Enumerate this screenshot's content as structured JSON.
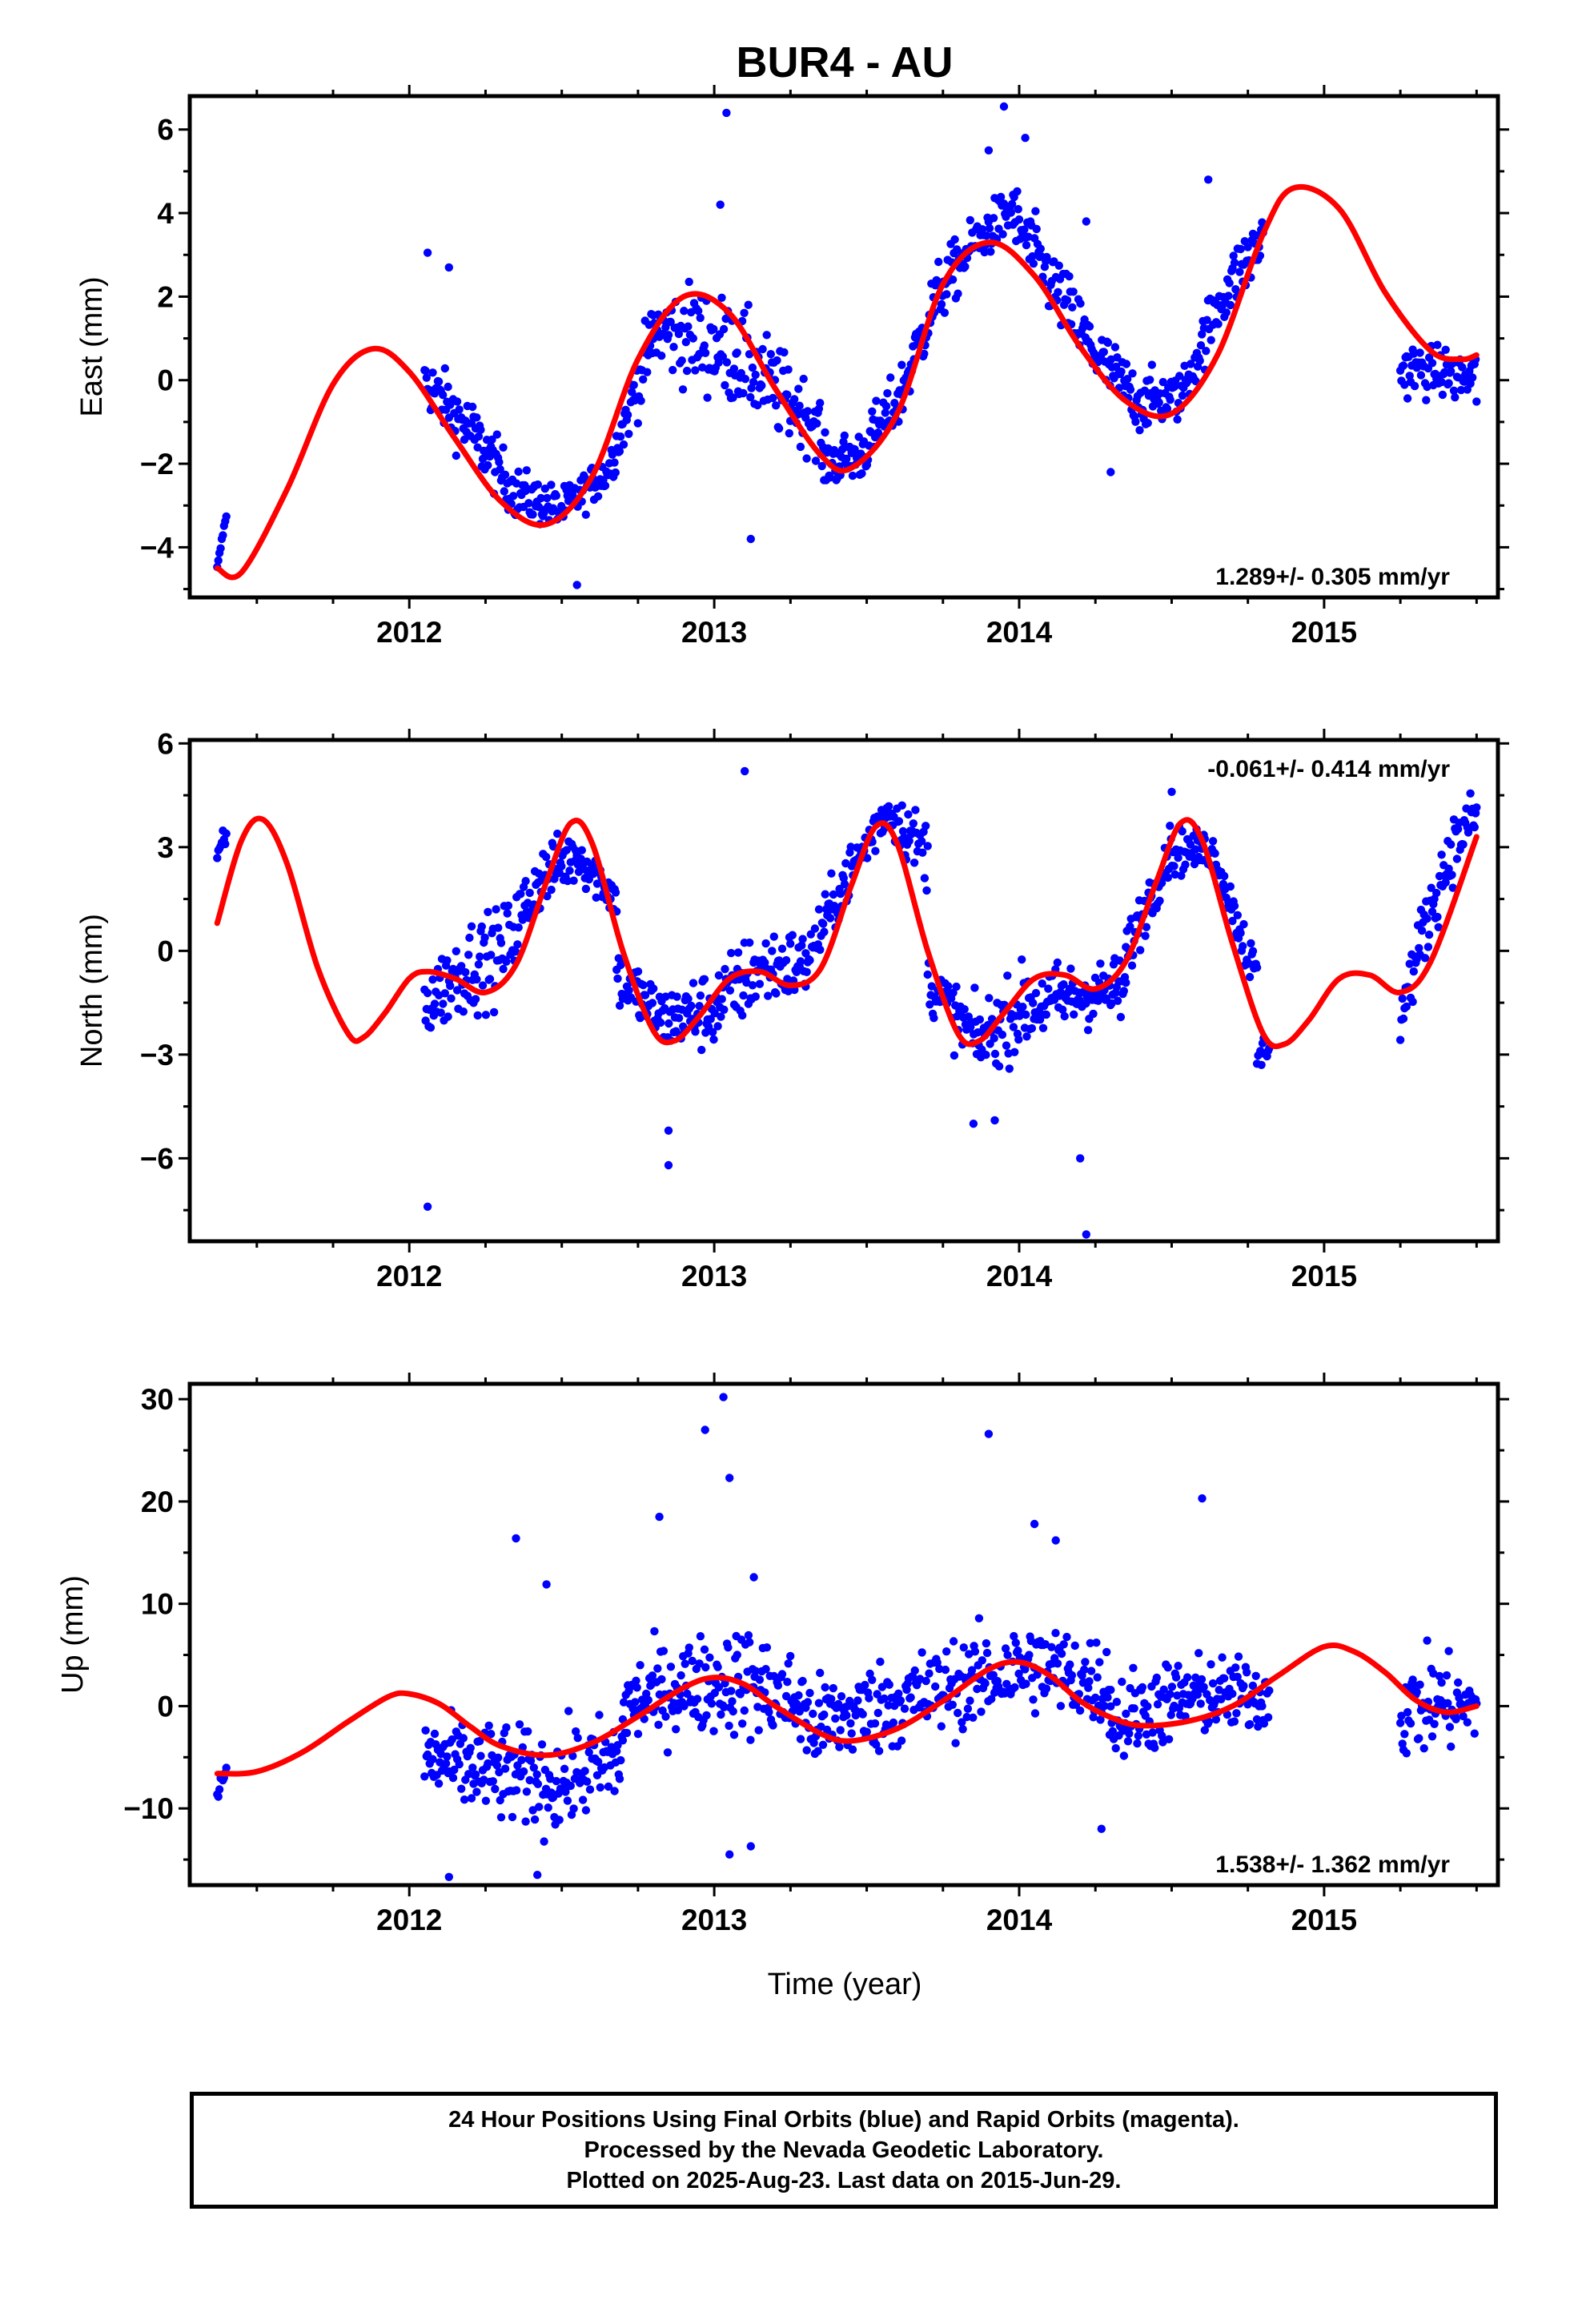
{
  "title": "BUR4 - AU",
  "xlabel": "Time (year)",
  "footer": {
    "line1": "24 Hour Positions Using Final Orbits (blue) and Rapid Orbits (magenta).",
    "line2": "Processed by the Nevada Geodetic Laboratory.",
    "line3": "Plotted on 2025-Aug-23. Last data on 2015-Jun-29."
  },
  "colors": {
    "points": "#0000ff",
    "fit": "#ff0000",
    "axes": "#000000"
  },
  "chart_data": [
    {
      "type": "scatter",
      "ylabel": "East (mm)",
      "rate_label": "1.289+/- 0.305 mm/yr",
      "rate_position": "bottom-right",
      "xlim": [
        2011.28,
        2015.57
      ],
      "ylim": [
        -5.2,
        6.8
      ],
      "xticks": [
        2012,
        2013,
        2014,
        2015
      ],
      "yticks": [
        -4,
        -2,
        0,
        2,
        4,
        6
      ],
      "ytick_labels": [
        "−4",
        "−2",
        "0",
        "2",
        "4",
        "6"
      ],
      "fit": {
        "x": [
          2011.37,
          2011.45,
          2011.6,
          2011.75,
          2011.88,
          2012.0,
          2012.15,
          2012.3,
          2012.45,
          2012.6,
          2012.75,
          2012.9,
          2013.05,
          2013.2,
          2013.35,
          2013.45,
          2013.6,
          2013.75,
          2013.9,
          2014.05,
          2014.2,
          2014.35,
          2014.5,
          2014.65,
          2014.8,
          2014.9,
          2015.05,
          2015.2,
          2015.35,
          2015.45,
          2015.5
        ],
        "y": [
          -4.5,
          -4.6,
          -2.6,
          -0.1,
          0.75,
          0.2,
          -1.4,
          -2.9,
          -3.45,
          -2.3,
          0.5,
          2.0,
          1.6,
          -0.2,
          -1.8,
          -2.1,
          -0.8,
          2.3,
          3.3,
          2.5,
          0.8,
          -0.5,
          -0.8,
          0.6,
          3.5,
          4.6,
          4.1,
          2.1,
          0.7,
          0.5,
          0.6
        ]
      },
      "segments": [
        {
          "start": 2011.37,
          "end": 2011.4,
          "lo": [
            -4.6,
            -3.4
          ],
          "hi": [
            -4.4,
            -3.0
          ]
        },
        {
          "start": 2012.05,
          "end": 2012.8,
          "lo": [
            -1.2,
            -2.6,
            -3.8,
            -4.0,
            -3.0,
            -0.6
          ],
          "hi": [
            1.2,
            0.2,
            -1.6,
            -2.2,
            -1.4,
            2.6
          ]
        },
        {
          "start": 2012.8,
          "end": 2013.35,
          "lo": [
            -0.4,
            -1.2,
            -1.6,
            -2.2,
            -2.4
          ],
          "hi": [
            2.8,
            3.3,
            2.8,
            1.6,
            0.2
          ]
        },
        {
          "start": 2013.35,
          "end": 2013.98,
          "lo": [
            -3.0,
            -3.0,
            -1.8,
            0.6,
            2.2,
            3.0
          ],
          "hi": [
            -1.0,
            -0.6,
            0.8,
            3.4,
            4.4,
            5.2
          ]
        },
        {
          "start": 2013.98,
          "end": 2014.8,
          "lo": [
            2.4,
            0.6,
            -0.8,
            -1.8,
            -1.4,
            0.6,
            2.0
          ],
          "hi": [
            5.4,
            3.8,
            2.0,
            0.8,
            0.6,
            3.4,
            4.8
          ]
        },
        {
          "start": 2015.25,
          "end": 2015.5,
          "lo": [
            -1.0,
            -0.8,
            -1.4
          ],
          "hi": [
            1.6,
            1.2,
            1.4
          ]
        }
      ],
      "outliers": [
        [
          2012.06,
          3.05
        ],
        [
          2012.13,
          2.7
        ],
        [
          2012.55,
          -4.9
        ],
        [
          2013.04,
          6.4
        ],
        [
          2013.02,
          4.2
        ],
        [
          2013.9,
          5.5
        ],
        [
          2013.95,
          6.55
        ],
        [
          2014.02,
          5.8
        ],
        [
          2014.22,
          3.8
        ],
        [
          2014.3,
          -2.2
        ],
        [
          2014.62,
          4.8
        ],
        [
          2013.12,
          -3.8
        ]
      ]
    },
    {
      "type": "scatter",
      "ylabel": "North (mm)",
      "rate_label": "-0.061+/- 0.414 mm/yr",
      "rate_position": "top-right",
      "xlim": [
        2011.28,
        2015.57
      ],
      "ylim": [
        -8.4,
        6.1
      ],
      "xticks": [
        2012,
        2013,
        2014,
        2015
      ],
      "yticks": [
        -6,
        -3,
        0,
        3,
        6
      ],
      "ytick_labels": [
        "−6",
        "−3",
        "0",
        "3",
        "6"
      ],
      "fit": {
        "x": [
          2011.37,
          2011.45,
          2011.52,
          2011.6,
          2011.7,
          2011.8,
          2011.85,
          2011.92,
          2012.0,
          2012.06,
          2012.15,
          2012.25,
          2012.35,
          2012.45,
          2012.53,
          2012.6,
          2012.7,
          2012.8,
          2012.87,
          2012.95,
          2013.05,
          2013.15,
          2013.25,
          2013.35,
          2013.45,
          2013.53,
          2013.6,
          2013.7,
          2013.8,
          2013.87,
          2013.95,
          2014.05,
          2014.15,
          2014.25,
          2014.35,
          2014.45,
          2014.53,
          2014.6,
          2014.7,
          2014.8,
          2014.87,
          2014.95,
          2015.05,
          2015.15,
          2015.25,
          2015.35,
          2015.5
        ],
        "y": [
          0.8,
          3.2,
          3.8,
          2.5,
          -0.5,
          -2.4,
          -2.5,
          -1.8,
          -0.8,
          -0.6,
          -0.8,
          -1.2,
          -0.4,
          2.0,
          3.7,
          3.1,
          0.0,
          -2.3,
          -2.6,
          -1.9,
          -0.8,
          -0.6,
          -1.0,
          -0.5,
          1.9,
          3.6,
          3.1,
          0.0,
          -2.4,
          -2.6,
          -1.8,
          -0.8,
          -0.7,
          -1.1,
          -0.3,
          2.0,
          3.7,
          3.2,
          0.2,
          -2.4,
          -2.7,
          -2.0,
          -0.8,
          -0.7,
          -1.2,
          -0.3,
          3.3
        ]
      },
      "segments": [
        {
          "start": 2011.37,
          "end": 2011.4,
          "lo": [
            2.3,
            2.6
          ],
          "hi": [
            3.4,
            3.9
          ]
        },
        {
          "start": 2012.05,
          "end": 2012.68,
          "lo": [
            -3.4,
            -2.8,
            -2.4,
            0.4,
            1.4,
            0.4
          ],
          "hi": [
            0.2,
            1.8,
            2.2,
            3.8,
            4.2,
            2.6
          ]
        },
        {
          "start": 2012.68,
          "end": 2013.3,
          "lo": [
            -2.4,
            -3.6,
            -3.8,
            -2.6,
            -2.2
          ],
          "hi": [
            1.0,
            -0.4,
            0.4,
            1.6,
            1.4
          ]
        },
        {
          "start": 2013.3,
          "end": 2013.7,
          "lo": [
            -1.6,
            0.6,
            2.8,
            1.0
          ],
          "hi": [
            1.0,
            3.6,
            5.4,
            4.6
          ]
        },
        {
          "start": 2013.7,
          "end": 2014.35,
          "lo": [
            -2.4,
            -4.4,
            -3.8,
            -3.0,
            -2.8
          ],
          "hi": [
            0.6,
            -0.8,
            0.6,
            0.4,
            0.6
          ]
        },
        {
          "start": 2014.35,
          "end": 2014.78,
          "lo": [
            -1.6,
            1.6,
            2.0,
            -2.4
          ],
          "hi": [
            1.4,
            4.2,
            3.8,
            0.6
          ]
        },
        {
          "start": 2014.78,
          "end": 2014.82,
          "lo": [
            -4.0,
            -3.6
          ],
          "hi": [
            -2.2,
            -1.8
          ]
        },
        {
          "start": 2015.25,
          "end": 2015.5,
          "lo": [
            -3.3,
            -1.0,
            1.2,
            2.6
          ],
          "hi": [
            -0.6,
            2.6,
            4.6,
            5.4
          ]
        }
      ],
      "outliers": [
        [
          2012.06,
          -7.4
        ],
        [
          2012.85,
          -5.2
        ],
        [
          2012.85,
          -6.2
        ],
        [
          2013.1,
          5.2
        ],
        [
          2014.2,
          -6.0
        ],
        [
          2014.22,
          -8.2
        ],
        [
          2014.5,
          4.6
        ],
        [
          2013.85,
          -5.0
        ],
        [
          2013.92,
          -4.9
        ]
      ]
    },
    {
      "type": "scatter",
      "ylabel": "Up (mm)",
      "rate_label": "1.538+/- 1.362 mm/yr",
      "rate_position": "bottom-right",
      "xlim": [
        2011.28,
        2015.57
      ],
      "ylim": [
        -17.5,
        31.5
      ],
      "xticks": [
        2012,
        2013,
        2014,
        2015
      ],
      "yticks": [
        -10,
        0,
        10,
        20,
        30
      ],
      "ytick_labels": [
        "−10",
        "0",
        "10",
        "20",
        "30"
      ],
      "fit": {
        "x": [
          2011.37,
          2011.5,
          2011.65,
          2011.8,
          2011.93,
          2012.0,
          2012.1,
          2012.2,
          2012.3,
          2012.45,
          2012.6,
          2012.75,
          2012.9,
          2013.0,
          2013.1,
          2013.2,
          2013.35,
          2013.45,
          2013.6,
          2013.75,
          2013.9,
          2014.0,
          2014.1,
          2014.2,
          2014.3,
          2014.4,
          2014.55,
          2014.7,
          2014.85,
          2015.0,
          2015.1,
          2015.2,
          2015.3,
          2015.4,
          2015.5
        ],
        "y": [
          -6.6,
          -6.4,
          -4.5,
          -1.5,
          0.9,
          1.2,
          0.2,
          -2.0,
          -3.9,
          -4.8,
          -3.6,
          -1.0,
          1.8,
          2.8,
          2.1,
          0.0,
          -2.7,
          -3.4,
          -2.2,
          0.5,
          3.6,
          4.3,
          3.0,
          0.5,
          -1.1,
          -1.9,
          -1.5,
          0.0,
          3.0,
          5.8,
          5.3,
          3.3,
          0.6,
          -0.6,
          0.0
        ]
      },
      "segments": [
        {
          "start": 2011.37,
          "end": 2011.4,
          "lo": [
            -12.0,
            -9.0
          ],
          "hi": [
            -6.0,
            -3.0
          ]
        },
        {
          "start": 2012.05,
          "end": 2012.7,
          "lo": [
            -12.0,
            -15.0,
            -16.0,
            -13.0
          ],
          "hi": [
            2.0,
            2.0,
            1.0,
            3.0
          ]
        },
        {
          "start": 2012.7,
          "end": 2013.3,
          "lo": [
            -8.0,
            -6.0,
            -7.0,
            -8.0
          ],
          "hi": [
            8.0,
            10.0,
            12.0,
            8.0
          ]
        },
        {
          "start": 2013.3,
          "end": 2014.3,
          "lo": [
            -10.0,
            -8.0,
            -6.0,
            -4.0,
            -6.0
          ],
          "hi": [
            6.0,
            8.0,
            10.0,
            12.0,
            10.0
          ]
        },
        {
          "start": 2014.3,
          "end": 2014.82,
          "lo": [
            -10.0,
            -6.0,
            -5.0
          ],
          "hi": [
            7.0,
            8.0,
            7.0
          ]
        },
        {
          "start": 2015.25,
          "end": 2015.5,
          "lo": [
            -9.0,
            -8.0,
            -7.0
          ],
          "hi": [
            8.0,
            9.0,
            6.0
          ]
        }
      ],
      "outliers": [
        [
          2012.13,
          -16.7
        ],
        [
          2012.35,
          16.4
        ],
        [
          2012.45,
          11.9
        ],
        [
          2012.82,
          18.5
        ],
        [
          2012.97,
          27.0
        ],
        [
          2013.03,
          30.2
        ],
        [
          2013.05,
          22.3
        ],
        [
          2013.05,
          -14.5
        ],
        [
          2013.12,
          -13.7
        ],
        [
          2013.13,
          12.6
        ],
        [
          2013.9,
          26.6
        ],
        [
          2014.05,
          17.8
        ],
        [
          2014.12,
          16.2
        ],
        [
          2014.6,
          20.3
        ],
        [
          2014.27,
          -12.0
        ],
        [
          2012.42,
          -16.5
        ]
      ]
    }
  ]
}
